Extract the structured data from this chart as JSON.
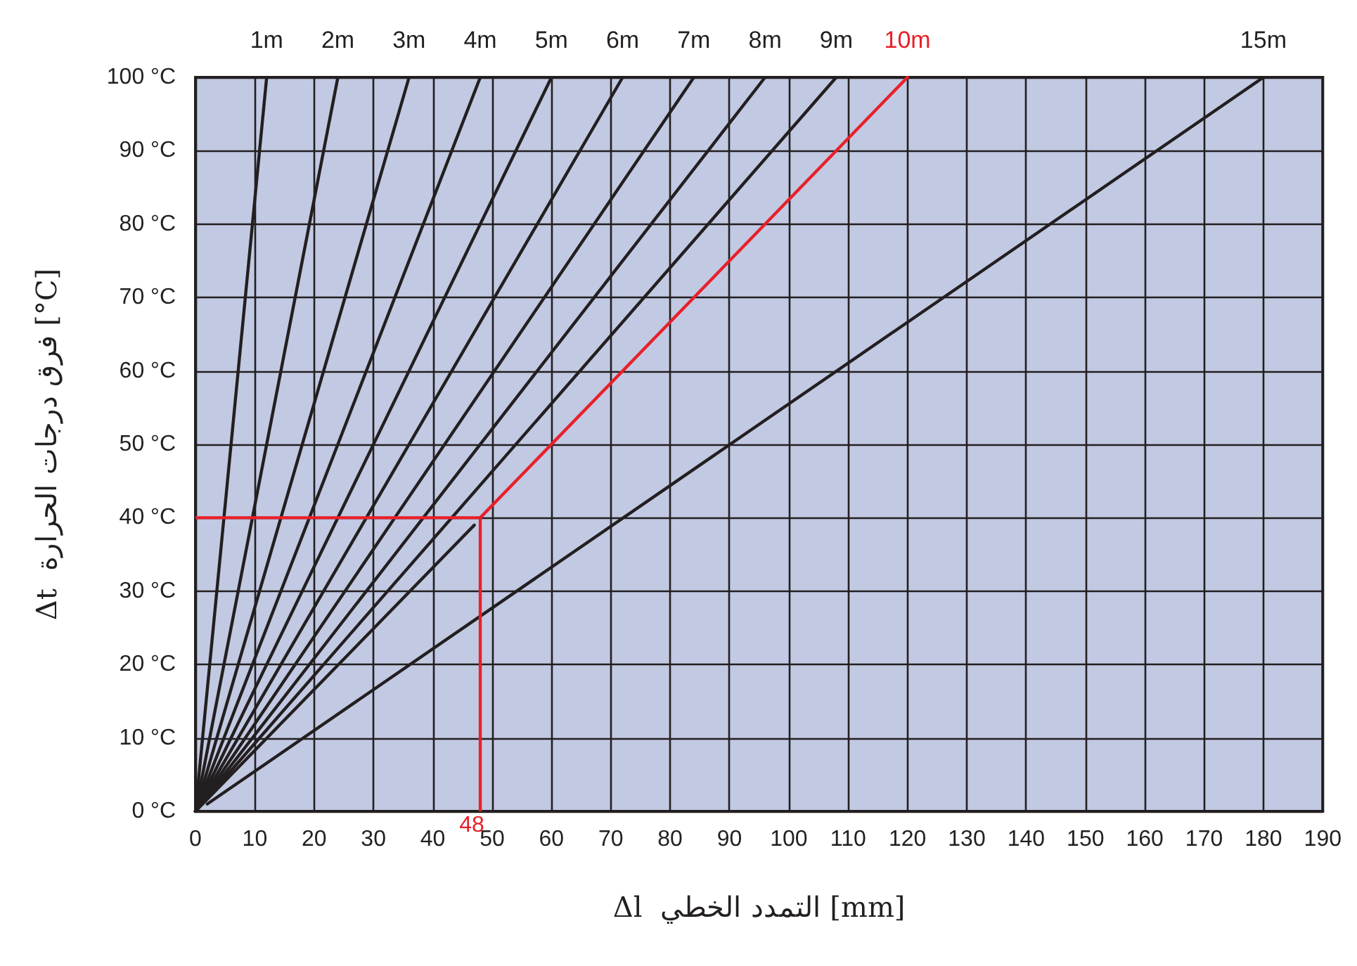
{
  "chart_data": {
    "type": "line",
    "xlabel": "Δl  التمدد الخطي [mm]",
    "ylabel": "Δt  فرق درجات الحرارة [°C]",
    "series": [
      {
        "name": "1m",
        "color": "#231f20",
        "x": [
          0,
          12
        ],
        "values": [
          0,
          100
        ]
      },
      {
        "name": "2m",
        "color": "#231f20",
        "x": [
          0,
          24
        ],
        "values": [
          0,
          100
        ]
      },
      {
        "name": "3m",
        "color": "#231f20",
        "x": [
          0,
          36
        ],
        "values": [
          0,
          100
        ]
      },
      {
        "name": "4m",
        "color": "#231f20",
        "x": [
          0,
          48
        ],
        "values": [
          0,
          100
        ]
      },
      {
        "name": "5m",
        "color": "#231f20",
        "x": [
          0,
          60
        ],
        "values": [
          0,
          100
        ]
      },
      {
        "name": "6m",
        "color": "#231f20",
        "x": [
          0,
          72
        ],
        "values": [
          0,
          100
        ]
      },
      {
        "name": "7m",
        "color": "#231f20",
        "x": [
          0,
          84
        ],
        "values": [
          0,
          100
        ]
      },
      {
        "name": "8m",
        "color": "#231f20",
        "x": [
          0,
          96
        ],
        "values": [
          0,
          100
        ]
      },
      {
        "name": "9m",
        "color": "#231f20",
        "x": [
          0,
          108
        ],
        "values": [
          0,
          100
        ]
      },
      {
        "color": "#231f20",
        "x": [
          0,
          47
        ],
        "values": [
          0,
          39
        ]
      },
      {
        "name": "10m",
        "color": "#e8202a",
        "x": [
          48,
          120
        ],
        "values": [
          40,
          100
        ]
      },
      {
        "name": "15m",
        "color": "#231f20",
        "x": [
          2,
          180
        ],
        "values": [
          1,
          100
        ]
      }
    ],
    "ref_lines": [
      {
        "axis": "y",
        "value": 40,
        "color": "#e8202a"
      },
      {
        "axis": "x",
        "value": 48,
        "label": "48",
        "color": "#e8202a"
      }
    ],
    "xlim": [
      0,
      190
    ],
    "xticks": [
      0,
      10,
      20,
      30,
      40,
      50,
      60,
      70,
      80,
      90,
      100,
      110,
      120,
      130,
      140,
      150,
      160,
      170,
      180,
      190
    ],
    "ylim": [
      0,
      100
    ],
    "yticks": [
      {
        "value": 0,
        "label": "0 °C"
      },
      {
        "value": 10,
        "label": "10 °C"
      },
      {
        "value": 20,
        "label": "20 °C"
      },
      {
        "value": 30,
        "label": "30 °C"
      },
      {
        "value": 40,
        "label": "40 °C"
      },
      {
        "value": 50,
        "label": "50 °C"
      },
      {
        "value": 60,
        "label": "60 °C"
      },
      {
        "value": 70,
        "label": "70 °C"
      },
      {
        "value": 80,
        "label": "80 °C"
      },
      {
        "value": 90,
        "label": "90 °C"
      },
      {
        "value": 100,
        "label": "100 °C"
      }
    ],
    "grid": true,
    "legend": false,
    "marker": "none",
    "line_style": "solid"
  }
}
